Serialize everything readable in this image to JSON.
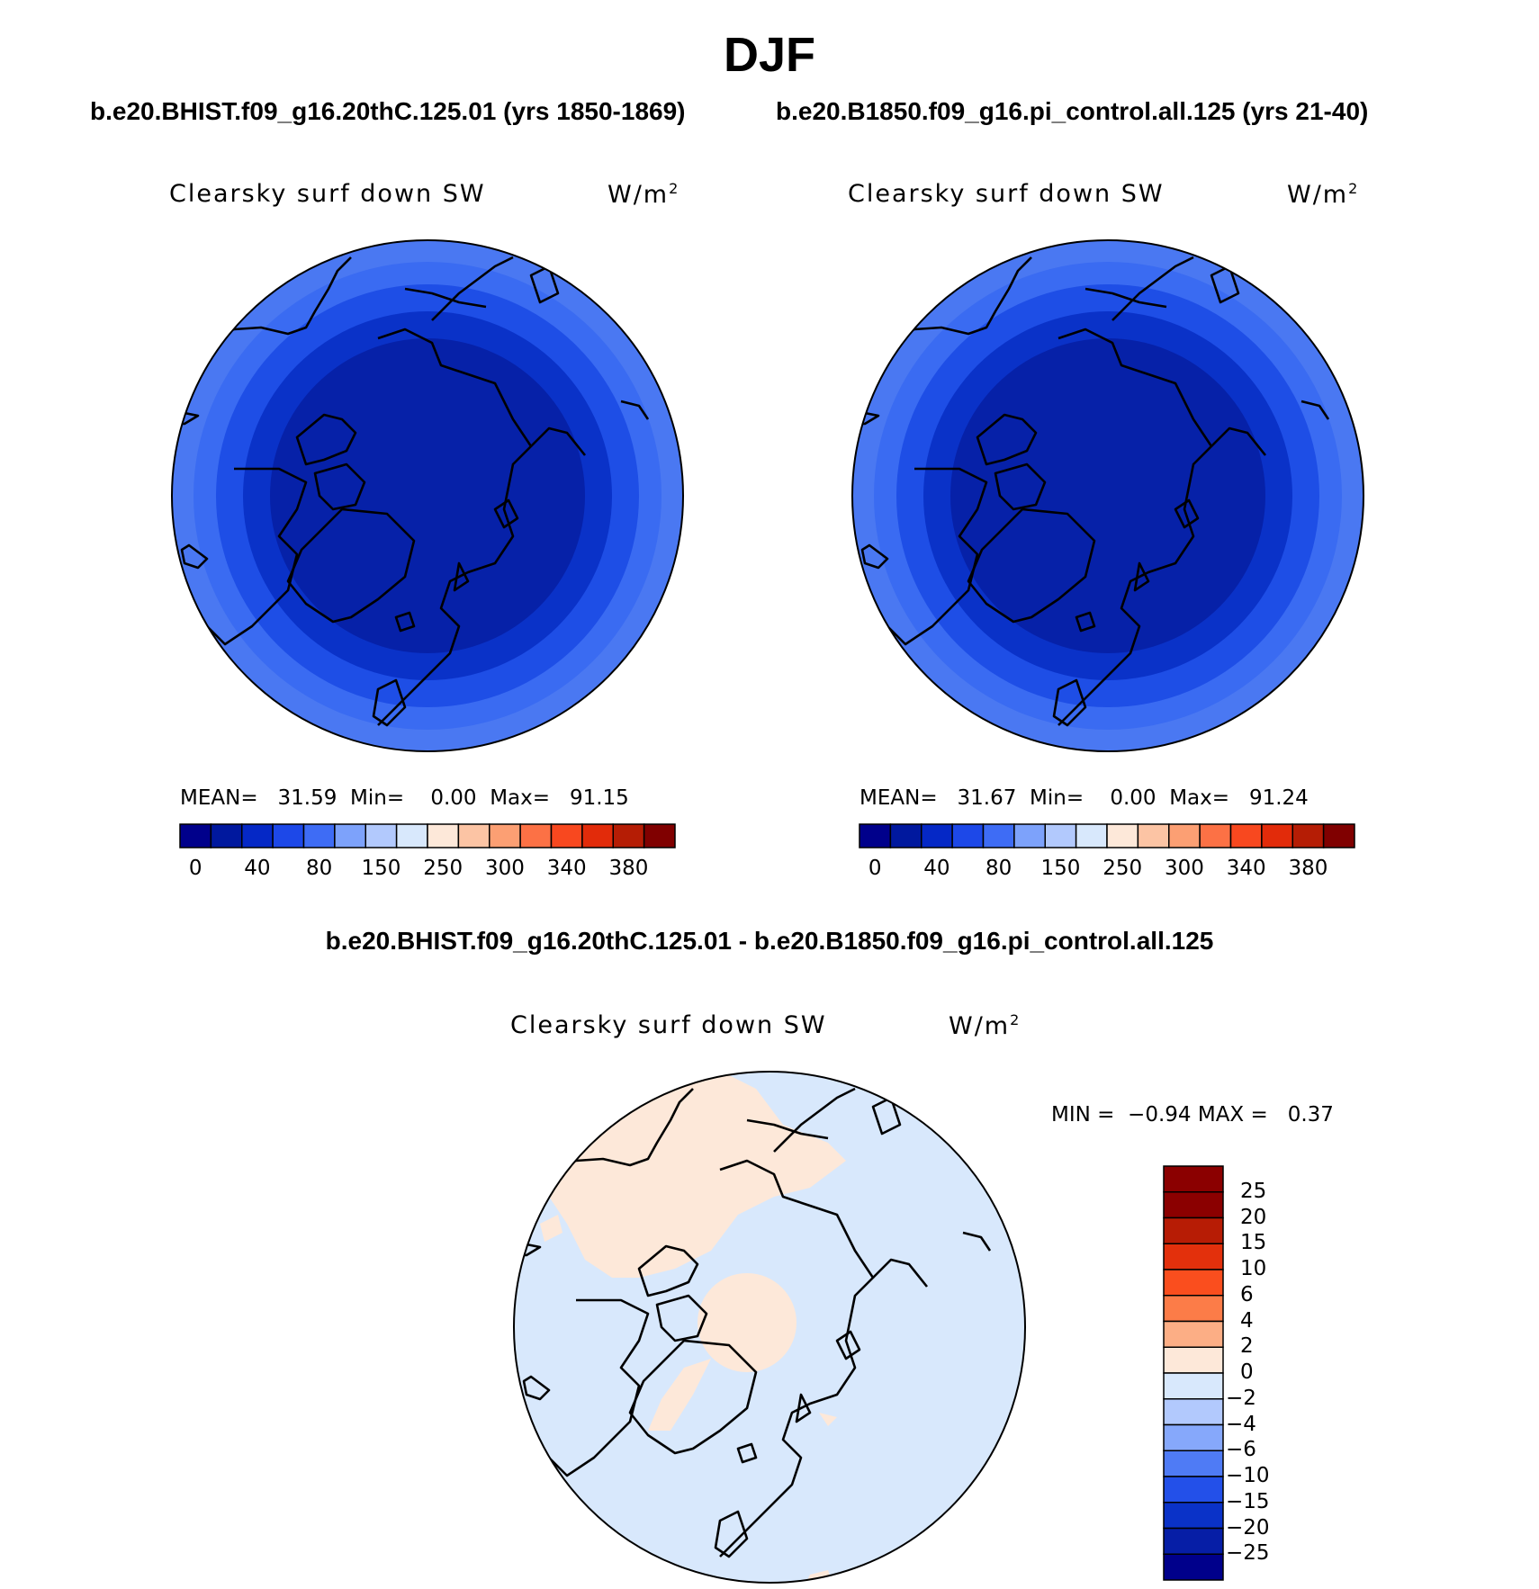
{
  "title": "DJF",
  "top_subtitles": [
    "b.e20.BHIST.f09_g16.20thC.125.01 (yrs 1850-1869)",
    "b.e20.B1850.f09_g16.pi_control.all.125 (yrs 21-40)"
  ],
  "diff_subtitle": "b.e20.BHIST.f09_g16.20thC.125.01 - b.e20.B1850.f09_g16.pi_control.all.125",
  "panels": [
    {
      "variable": "Clearsky surf down SW",
      "units": "W/m",
      "units_sup": "2",
      "mean_label": "MEAN=",
      "mean": "31.59",
      "min_label": "Min=",
      "min": "0.00",
      "max_label": "Max=",
      "max": "91.15"
    },
    {
      "variable": "Clearsky surf down SW",
      "units": "W/m",
      "units_sup": "2",
      "mean_label": "MEAN=",
      "mean": "31.67",
      "min_label": "Min=",
      "min": "0.00",
      "max_label": "Max=",
      "max": "91.24"
    }
  ],
  "diff_panel": {
    "variable": "Clearsky surf down SW",
    "units": "W/m",
    "units_sup": "2",
    "min_label": "MIN =",
    "min": "−0.94",
    "max_label": "MAX =",
    "max": "0.37"
  },
  "colorbar_top": {
    "ticks": [
      "0",
      "40",
      "80",
      "150",
      "250",
      "300",
      "340",
      "380"
    ],
    "colors": [
      "#00008b",
      "#00189e",
      "#0528c6",
      "#1d48e8",
      "#3e6cf5",
      "#7da2fb",
      "#b2c9fd",
      "#d8e8fc",
      "#fde8d9",
      "#fcc4a4",
      "#fc9f73",
      "#fc7145",
      "#f8481f",
      "#e22b0a",
      "#b51d05",
      "#800000"
    ]
  },
  "colorbar_diff": {
    "ticks": [
      "25",
      "20",
      "15",
      "10",
      "6",
      "4",
      "2",
      "0",
      "−2",
      "−4",
      "−6",
      "−10",
      "−15",
      "−20",
      "−25"
    ],
    "colors": [
      "#8b0000",
      "#b71c05",
      "#e3300c",
      "#fa4e1e",
      "#fc7c48",
      "#fcae85",
      "#fde8d9",
      "#d8e8fc",
      "#b2c9fd",
      "#86a8fb",
      "#4f7bf5",
      "#2350e9",
      "#0a32c8",
      "#061ea6",
      "#00008b"
    ]
  },
  "map_shading_ppt": {
    "levels": [
      "#4a78f2",
      "#3a6bf2",
      "#1e4ee6",
      "#0a32c8",
      "#0621a8"
    ]
  }
}
